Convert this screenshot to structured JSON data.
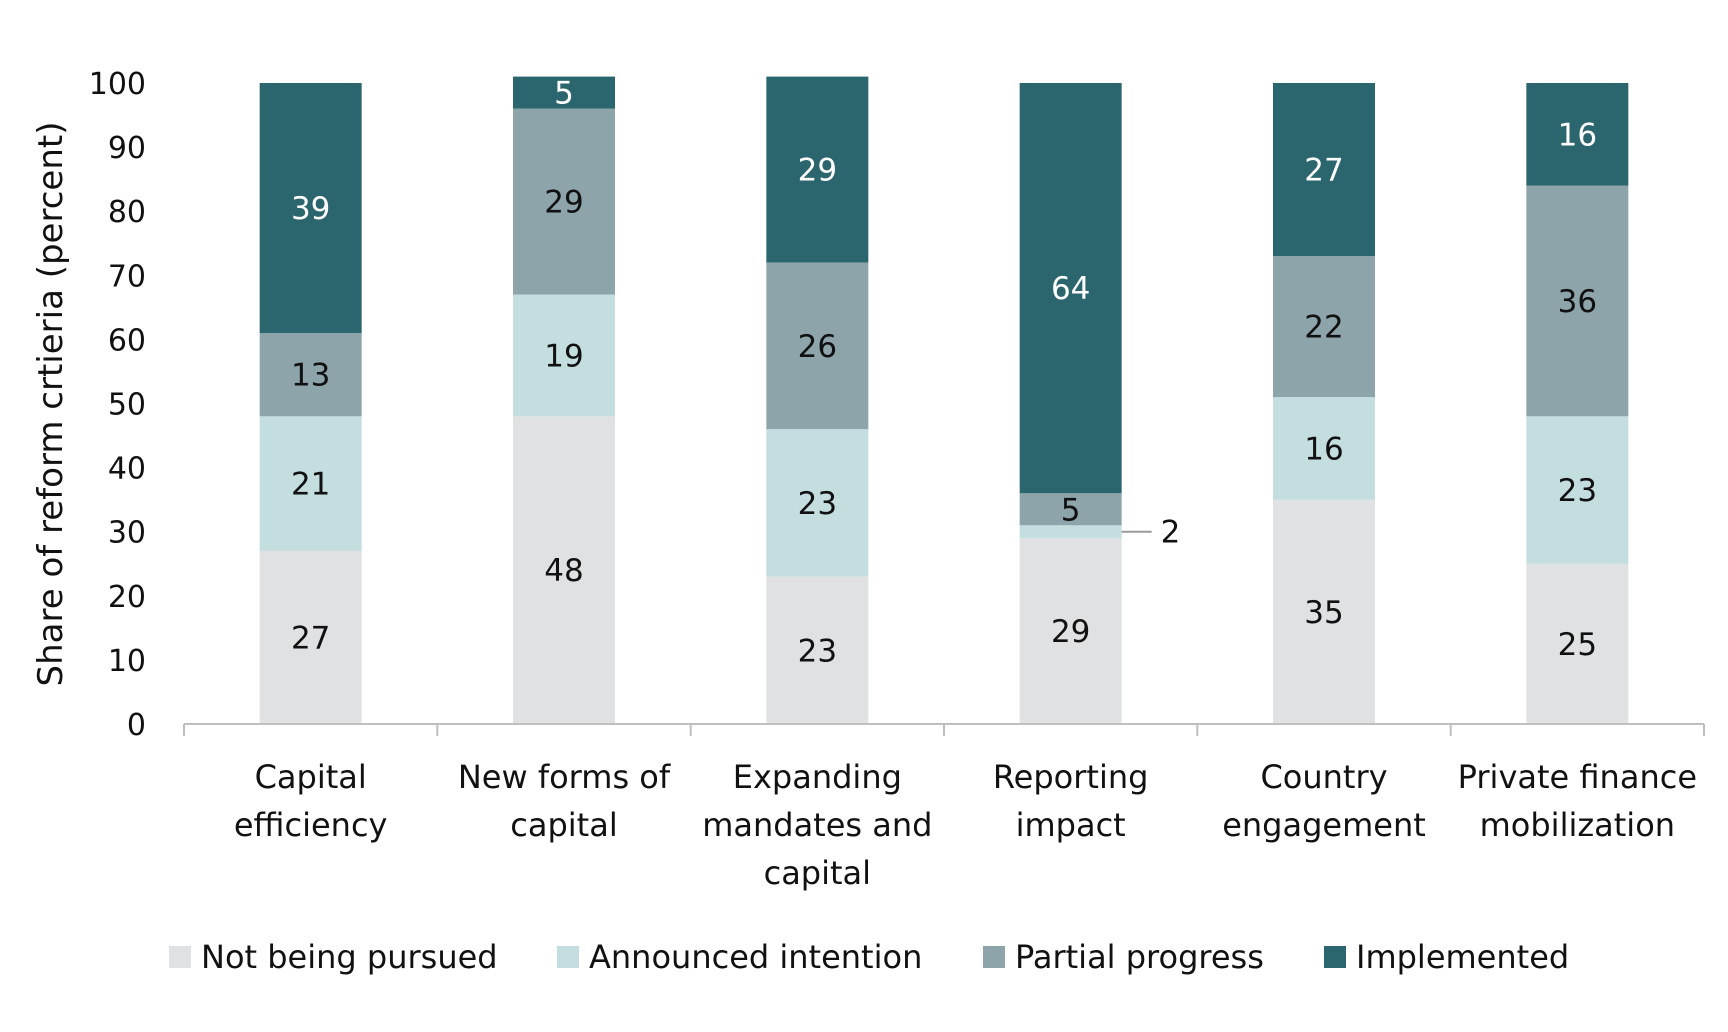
{
  "chart_data": {
    "type": "bar",
    "stacked": true,
    "title": "",
    "xlabel": "",
    "ylabel": "Share of reform crtieria (percent)",
    "ylim": [
      0,
      100
    ],
    "yticks": [
      "0",
      "10",
      "20",
      "30",
      "40",
      "50",
      "60",
      "70",
      "80",
      "90",
      "100"
    ],
    "categories": [
      [
        "Capital",
        "efficiency"
      ],
      [
        "New forms of",
        "capital"
      ],
      [
        "Expanding",
        "mandates and",
        "capital"
      ],
      [
        "Reporting",
        "impact"
      ],
      [
        "Country",
        "engagement"
      ],
      [
        "Private finance",
        "mobilization"
      ]
    ],
    "series": [
      {
        "name": "Not being pursued",
        "color": "#e0e1e3",
        "label_color": "#111111",
        "values": [
          27,
          48,
          23,
          29,
          35,
          25
        ]
      },
      {
        "name": "Announced intention",
        "color": "#c4dee0",
        "label_color": "#111111",
        "values": [
          21,
          19,
          23,
          2,
          16,
          23
        ]
      },
      {
        "name": "Partial progress",
        "color": "#8ca4aa",
        "label_color": "#111111",
        "values": [
          13,
          29,
          26,
          5,
          22,
          36
        ]
      },
      {
        "name": "Implemented",
        "color": "#2b666e",
        "label_color": "#ffffff",
        "values": [
          39,
          5,
          29,
          64,
          27,
          16
        ]
      }
    ],
    "legend_position": "bottom"
  }
}
